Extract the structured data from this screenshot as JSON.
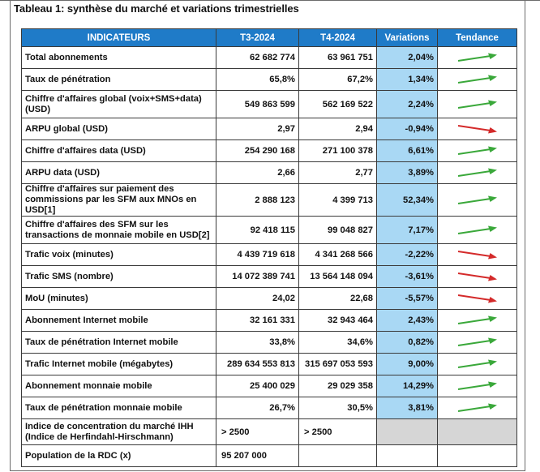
{
  "caption": "Tableau 1: synthèse du marché et variations trimestrielles",
  "headers": [
    "INDICATEURS",
    "T3-2024",
    "T4-2024",
    "Variations",
    "Tendance"
  ],
  "colors": {
    "header": "#1f7bc8",
    "variation": "#a9d8f4",
    "up": "#3aa83a",
    "down": "#d42a2a",
    "empty": "#d6d6d6"
  },
  "rows": [
    {
      "label": "Total abonnements",
      "t3": "62 682 774",
      "t4": "63 961 751",
      "var": "2,04%",
      "trend": "up"
    },
    {
      "label": "Taux de pénétration",
      "t3": "65,8%",
      "t4": "67,2%",
      "var": "1,34%",
      "trend": "up"
    },
    {
      "label": "Chiffre d'affaires global (voix+SMS+data) (USD)",
      "t3": "549 863 599",
      "t4": "562 169 522",
      "var": "2,24%",
      "trend": "up"
    },
    {
      "label": "ARPU global (USD)",
      "t3": "2,97",
      "t4": "2,94",
      "var": "-0,94%",
      "trend": "down"
    },
    {
      "label": "Chiffre d'affaires data (USD)",
      "t3": "254 290 168",
      "t4": "271 100 378",
      "var": "6,61%",
      "trend": "up"
    },
    {
      "label": "ARPU data (USD)",
      "t3": "2,66",
      "t4": "2,77",
      "var": "3,89%",
      "trend": "up"
    },
    {
      "label": "Chiffre d'affaires sur paiement des commissions par les SFM aux MNOs en USD[1]",
      "t3": "2 888 123",
      "t4": "4 399 713",
      "var": "52,34%",
      "trend": "up"
    },
    {
      "label": "Chiffre d'affaires des SFM sur les transactions de monnaie mobile en USD[2]",
      "t3": "92 418 115",
      "t4": "99 048 827",
      "var": "7,17%",
      "trend": "up"
    },
    {
      "label": "Trafic voix (minutes)",
      "t3": "4 439 719 618",
      "t4": "4 341 268 566",
      "var": "-2,22%",
      "trend": "down"
    },
    {
      "label": "Trafic SMS (nombre)",
      "t3": "14 072 389 741",
      "t4": "13 564 148 094",
      "var": "-3,61%",
      "trend": "down"
    },
    {
      "label": "MoU (minutes)",
      "t3": "24,02",
      "t4": "22,68",
      "var": "-5,57%",
      "trend": "down"
    },
    {
      "label": "Abonnement Internet mobile",
      "t3": "32 161 331",
      "t4": "32 943 464",
      "var": "2,43%",
      "trend": "up"
    },
    {
      "label": "Taux de pénétration Internet mobile",
      "t3": "33,8%",
      "t4": "34,6%",
      "var": "0,82%",
      "trend": "up"
    },
    {
      "label": "Trafic Internet mobile (mégabytes)",
      "t3": "289 634 553 813",
      "t4": "315 697 053 593",
      "var": "9,00%",
      "trend": "up"
    },
    {
      "label": "Abonnement monnaie mobile",
      "t3": "25 400 029",
      "t4": "29 029 358",
      "var": "14,29%",
      "trend": "up"
    },
    {
      "label": "Taux de pénétration monnaie mobile",
      "t3": "26,7%",
      "t4": "30,5%",
      "var": "3,81%",
      "trend": "up"
    },
    {
      "label": "Indice de concentration du marché IHH (Indice de Herfindahl-Hirschmann)",
      "t3": "> 2500",
      "t4": "> 2500",
      "var": "",
      "trend": "none"
    },
    {
      "label": "Population de la RDC (x)",
      "t3": "95 207 000",
      "t4": "",
      "var": "",
      "trend": "blank"
    }
  ]
}
